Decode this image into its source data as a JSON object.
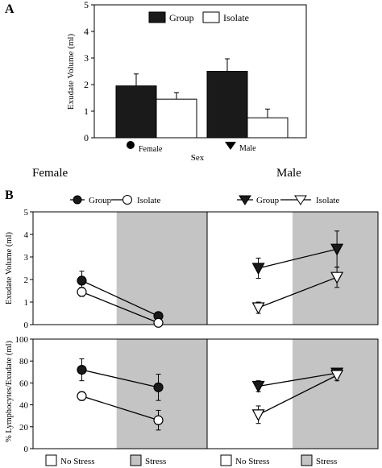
{
  "panel_labels": {
    "a": "A",
    "b": "B"
  },
  "panel_a": {
    "ylabel": "Exudate Volume (ml)",
    "xlabel": "Sex",
    "legend": {
      "group": "Group",
      "isolate": "Isolate"
    },
    "category_marker_labels": {
      "female": "Female",
      "male": "Male"
    },
    "below_labels": {
      "female": "Female",
      "male": "Male"
    }
  },
  "panel_b": {
    "legend_female": {
      "group": "Group",
      "isolate": "Isolate"
    },
    "legend_male": {
      "group": "Group",
      "isolate": "Isolate"
    },
    "top_ylabel": "Exudate Volume (ml)",
    "bottom_ylabel": "% Lymphocytes/Exudate (ml)",
    "bottom_legend": {
      "no_stress": "No Stress",
      "stress": "Stress"
    }
  },
  "colors": {
    "group": "#1a1a1a",
    "isolate": "#ffffff",
    "stress_shade": "#c4c4c4",
    "axis": "#000000"
  },
  "chart_data": [
    {
      "id": "bar_exudate_by_sex",
      "type": "bar",
      "title": "",
      "xlabel": "Sex",
      "ylabel": "Exudate Volume (ml)",
      "categories": [
        "Female",
        "Male"
      ],
      "ylim": [
        0,
        5
      ],
      "yticks": [
        0,
        1,
        2,
        3,
        4,
        5
      ],
      "legend_position": "top-center",
      "series": [
        {
          "name": "Group",
          "values": [
            1.95,
            2.5
          ],
          "errors": [
            0.45,
            0.47
          ]
        },
        {
          "name": "Isolate",
          "values": [
            1.45,
            0.75
          ],
          "errors": [
            0.25,
            0.33
          ]
        }
      ]
    },
    {
      "id": "female_exudate",
      "type": "line",
      "ylabel": "Exudate Volume (ml)",
      "categories": [
        "No Stress",
        "Stress"
      ],
      "ylim": [
        0,
        5
      ],
      "yticks": [
        0,
        1,
        2,
        3,
        4,
        5
      ],
      "series": [
        {
          "name": "Group",
          "values": [
            1.95,
            0.38
          ],
          "errors": [
            0.42,
            0.1
          ]
        },
        {
          "name": "Isolate",
          "values": [
            1.45,
            0.08
          ],
          "errors": [
            0.2,
            0.05
          ]
        }
      ]
    },
    {
      "id": "male_exudate",
      "type": "line",
      "categories": [
        "No Stress",
        "Stress"
      ],
      "ylim": [
        0,
        5
      ],
      "series": [
        {
          "name": "Group",
          "values": [
            2.5,
            3.35
          ],
          "errors": [
            0.45,
            0.8
          ]
        },
        {
          "name": "Isolate",
          "values": [
            0.75,
            2.1
          ],
          "errors": [
            0.25,
            0.45
          ]
        }
      ]
    },
    {
      "id": "female_lymphocytes",
      "type": "line",
      "ylabel": "% Lymphocytes/Exudate (ml)",
      "categories": [
        "No Stress",
        "Stress"
      ],
      "ylim": [
        0,
        100
      ],
      "yticks": [
        0,
        20,
        40,
        60,
        80,
        100
      ],
      "series": [
        {
          "name": "Group",
          "values": [
            72,
            56
          ],
          "errors": [
            10,
            12
          ]
        },
        {
          "name": "Isolate",
          "values": [
            48,
            26
          ],
          "errors": [
            4,
            9
          ]
        }
      ]
    },
    {
      "id": "male_lymphocytes",
      "type": "line",
      "categories": [
        "No Stress",
        "Stress"
      ],
      "ylim": [
        0,
        100
      ],
      "series": [
        {
          "name": "Group",
          "values": [
            57,
            69
          ],
          "errors": [
            5,
            4
          ]
        },
        {
          "name": "Isolate",
          "values": [
            31,
            67
          ],
          "errors": [
            8,
            5
          ]
        }
      ]
    }
  ]
}
